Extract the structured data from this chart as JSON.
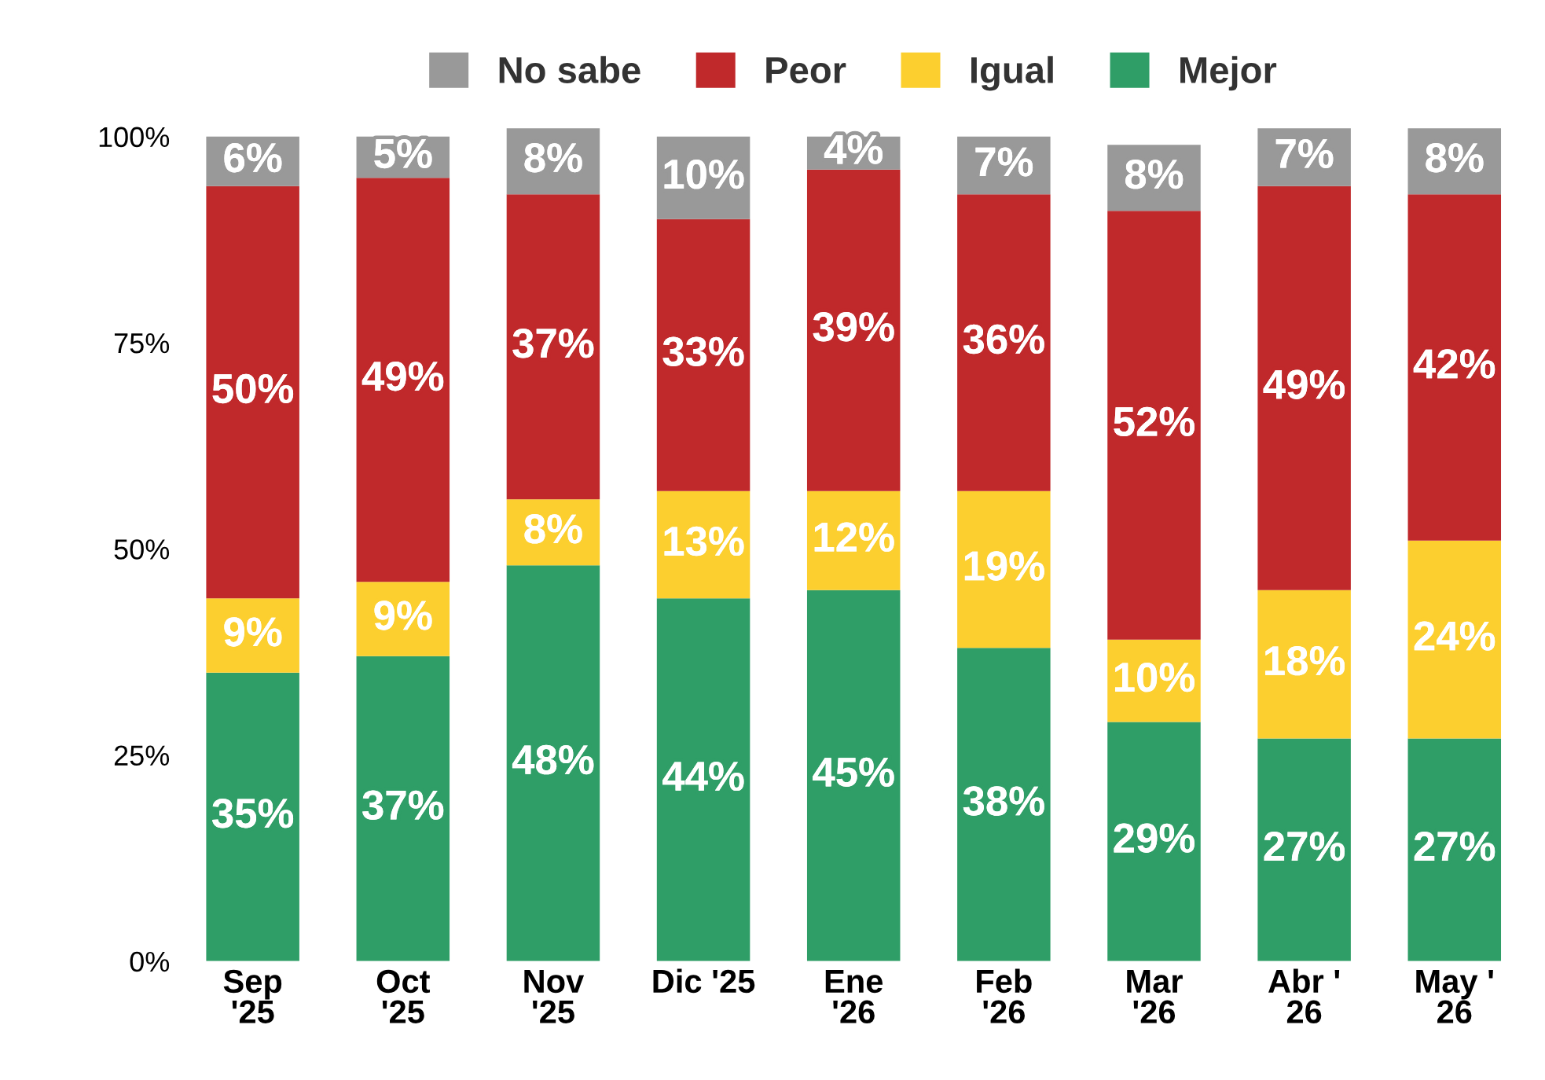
{
  "chart_data": {
    "type": "bar",
    "stacked": true,
    "categories": [
      "Sep\n'25",
      "Oct\n'25",
      "Nov\n'25",
      "Dic '25",
      "Ene\n'26",
      "Feb\n'26",
      "Mar\n'26",
      "Abr '\n26",
      "May '\n26"
    ],
    "series": [
      {
        "name": "Mejor",
        "color": "#2f9e67",
        "values": [
          35,
          37,
          48,
          44,
          45,
          38,
          29,
          27,
          27
        ],
        "value_labels": [
          "35%",
          "37%",
          "48%",
          "44%",
          "45%",
          "38%",
          "29%",
          "27%",
          "27%"
        ]
      },
      {
        "name": "Igual",
        "color": "#fccf2f",
        "values": [
          9,
          9,
          8,
          13,
          12,
          19,
          10,
          18,
          24
        ],
        "value_labels": [
          "9%",
          "9%",
          "8%",
          "13%",
          "12%",
          "19%",
          "10%",
          "18%",
          "24%"
        ]
      },
      {
        "name": "Peor",
        "color": "#c0292b",
        "values": [
          50,
          49,
          37,
          33,
          39,
          36,
          52,
          49,
          42
        ],
        "value_labels": [
          "50%",
          "49%",
          "37%",
          "33%",
          "39%",
          "36%",
          "52%",
          "49%",
          "42%"
        ]
      },
      {
        "name": "No sabe",
        "color": "#999999",
        "values": [
          6,
          5,
          8,
          10,
          4,
          7,
          8,
          7,
          8
        ],
        "value_labels": [
          "6%",
          "5%",
          "8%",
          "10%",
          "4%",
          "7%",
          "8%",
          "7%",
          "8%"
        ]
      }
    ],
    "ylim": [
      0,
      101.5
    ],
    "yticks": [
      {
        "value": 0,
        "label": "0%"
      },
      {
        "value": 25,
        "label": "25%"
      },
      {
        "value": 50,
        "label": "50%"
      },
      {
        "value": 75,
        "label": "75%"
      },
      {
        "value": 100,
        "label": "100%"
      }
    ],
    "grid": false,
    "legend": "top"
  }
}
